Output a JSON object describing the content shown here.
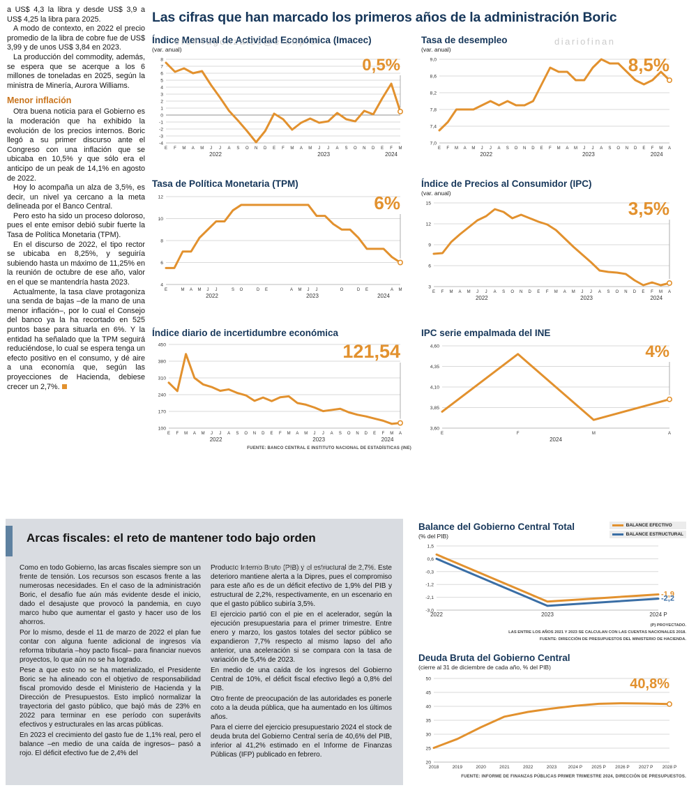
{
  "page": {
    "main_title": "Las cifras que han marcado los primeros años de la administración Boric",
    "watermarks": [
      "ero#4agonzalez@e-clip.cl",
      "diariofinan",
      "ero#4agonzalez@e-clip.cl"
    ]
  },
  "left_article": {
    "paragraphs": [
      "a US$ 4,3 la libra y desde US$ 3,9 a US$ 4,25 la libra para 2025.",
      "A modo de contexto, en 2022 el precio promedio de la libra de cobre fue de US$ 3,99 y de unos US$ 3,84 en 2023.",
      "La producción del commodity, además, se espera que se acerque a los 6 millones de toneladas en 2025, según la ministra de Minería, Aurora Williams."
    ],
    "heading": "Menor inflación",
    "paragraphs2": [
      "Otra buena noticia para el Gobierno es la moderación que ha exhibido la evolución de los precios internos. Boric llegó a su primer discurso ante el Congreso con una inflación que se ubicaba en 10,5% y que sólo era el anticipo de un peak de 14,1% en agosto de 2022.",
      "Hoy lo acompaña un alza de 3,5%, es decir, un nivel ya cercano a la meta delineada por el Banco Central.",
      "Pero esto ha sido un proceso doloroso, pues el ente emisor debió subir fuerte la Tasa de Política Monetaria (TPM).",
      "En el discurso de 2022, el tipo rector se ubicaba en 8,25%, y seguiría subiendo hasta un máximo de 11,25% en la reunión de octubre de ese año, valor en el que se mantendría hasta 2023.",
      "Actualmente, la tasa clave protagoniza una senda de bajas –de la mano de una menor inflación–, por lo cual el Consejo del banco ya la ha recortado en 525 puntos base para situarla en 6%. Y la entidad ha señalado que la TPM seguirá reduciéndose, lo cual se espera tenga un efecto positivo en el consumo, y dé aire a una economía que, según las proyecciones de Hacienda, debiese crecer un 2,7%."
    ]
  },
  "fiscal_panel": {
    "headline": "Arcas fiscales: el reto de mantener todo bajo orden",
    "col1": [
      "Como en todo Gobierno, las arcas fiscales siempre son un frente de tensión. Los recursos son escasos frente a las numerosas necesidades. En el caso de la administración Boric, el desafío fue aún más evidente desde el inicio, dado el desajuste que provocó la pandemia, en cuyo marco hubo que aumentar el gasto y hacer uso de los ahorros.",
      "Por lo mismo, desde el 11 de marzo de 2022 el plan fue contar con alguna fuente adicional de ingresos vía reforma tributaria –hoy pacto fiscal– para financiar nuevos proyectos, lo que aún no se ha logrado.",
      "Pese a que esto no se ha materializado, el Presidente Boric se ha alineado con el objetivo de responsabilidad fiscal promovido desde el Ministerio de Hacienda y la Dirección de Presupuestos. Esto implicó normalizar la trayectoria del gasto público, que bajó más de 23% en 2022 para terminar en ese período con superávits efectivos y estructurales en las arcas públicas.",
      "En 2023 el crecimiento del gasto fue de 1,1% real, pero el balance –en medio de una caída de ingresos– pasó a rojo. El déficit efectivo fue de 2,4% del"
    ],
    "col2": [
      "Producto Interno Bruto (PIB) y el estructural de 2,7%. Este deterioro mantiene alerta a la Dipres, pues el compromiso para este año es de un déficit efectivo de 1,9% del PIB y estructural de 2,2%, respectivamente, en un escenario en que el gasto público subiría 3,5%.",
      "El ejercicio partió con el pie en el acelerador, según la ejecución presupuestaria para el primer trimestre. Entre enero y marzo, los gastos totales del sector público se expandieron 7,7% respecto al mismo lapso del año anterior, una aceleración si se compara con la tasa de variación de 5,4% de 2023.",
      "En medio de una caída de los ingresos del Gobierno Central de 10%, el déficit fiscal efectivo llegó a 0,8% del PIB.",
      "Otro frente de preocupación de las autoridades es ponerle coto a la deuda pública, que ha aumentado en los últimos años.",
      "Para el cierre del ejercicio presupuestario 2024 el stock de deuda bruta del Gobierno Central sería de 40,6% del PIB, inferior al 41,2% estimado en el Informe de Finanzas Públicas (IFP) publicado en febrero."
    ]
  },
  "chart_data": [
    {
      "type": "line",
      "title": "Índice Mensual de Actividad Económica (Imacec)",
      "subtitle": "(var. anual)",
      "ylim": [
        -4,
        8
      ],
      "yticks": [
        "-4",
        "-3",
        "-2",
        "-1",
        "0",
        "1",
        "2",
        "3",
        "4",
        "5",
        "6",
        "7",
        "8"
      ],
      "x_labels": [
        "E",
        "F",
        "M",
        "A",
        "M",
        "J",
        "J",
        "A",
        "S",
        "O",
        "N",
        "D",
        "E",
        "F",
        "M",
        "A",
        "M",
        "J",
        "J",
        "A",
        "S",
        "O",
        "N",
        "D",
        "E",
        "F",
        "M"
      ],
      "years": [
        {
          "label": "2022",
          "from": 0,
          "to": 11
        },
        {
          "label": "2023",
          "from": 12,
          "to": 23
        },
        {
          "label": "2024",
          "from": 24,
          "to": 26
        }
      ],
      "series": [
        {
          "name": "Imacec",
          "color": "#E2912E",
          "values": [
            7.5,
            6.2,
            6.7,
            6.0,
            6.3,
            4.3,
            2.5,
            0.6,
            -0.8,
            -2.3,
            -3.9,
            -2.3,
            0.2,
            -0.6,
            -2.1,
            -1.1,
            -0.5,
            -1.1,
            -0.9,
            0.3,
            -0.6,
            -0.9,
            0.6,
            0.1,
            2.4,
            4.5,
            0.5
          ]
        }
      ],
      "end_label": "0,5%",
      "end_marker": true,
      "end_line": true
    },
    {
      "type": "line",
      "title": "Tasa de desempleo",
      "subtitle": "(var. anual)",
      "ylim": [
        7.0,
        9.0
      ],
      "yticks": [
        "7,0",
        "7,4",
        "7,8",
        "8,2",
        "8,6",
        "9,0"
      ],
      "x_labels": [
        "E",
        "F",
        "M",
        "A",
        "M",
        "J",
        "J",
        "A",
        "S",
        "O",
        "N",
        "D",
        "E",
        "F",
        "M",
        "A",
        "M",
        "J",
        "J",
        "A",
        "S",
        "O",
        "N",
        "D",
        "E",
        "F",
        "M",
        "A"
      ],
      "years": [
        {
          "label": "2022",
          "from": 0,
          "to": 11
        },
        {
          "label": "2023",
          "from": 12,
          "to": 23
        },
        {
          "label": "2024",
          "from": 24,
          "to": 27
        }
      ],
      "series": [
        {
          "name": "Desempleo",
          "color": "#E2912E",
          "values": [
            7.3,
            7.5,
            7.8,
            7.8,
            7.8,
            7.9,
            8.0,
            7.9,
            8.0,
            7.9,
            7.9,
            8.0,
            8.4,
            8.8,
            8.7,
            8.7,
            8.5,
            8.5,
            8.8,
            9.0,
            8.9,
            8.9,
            8.7,
            8.5,
            8.4,
            8.5,
            8.7,
            8.5
          ]
        }
      ],
      "end_label": "8,5%",
      "end_marker": true,
      "end_line": true
    },
    {
      "type": "line",
      "title": "Tasa de Política Monetaria (TPM)",
      "ylim": [
        4,
        12
      ],
      "yticks": [
        "4",
        "6",
        "8",
        "10",
        "12"
      ],
      "x_labels": [
        "E",
        "",
        "M",
        "A",
        "M",
        "J",
        "J",
        "",
        "S",
        "O",
        "",
        "D",
        "E",
        "",
        "",
        "A",
        "M",
        "J",
        "J",
        "",
        "",
        "O",
        "",
        "D",
        "E",
        "",
        "",
        "A",
        "M"
      ],
      "years": [
        {
          "label": "2022",
          "from": 0,
          "to": 11
        },
        {
          "label": "2023",
          "from": 12,
          "to": 23
        },
        {
          "label": "2024",
          "from": 24,
          "to": 28
        }
      ],
      "series": [
        {
          "name": "TPM",
          "color": "#E2912E",
          "values": [
            5.5,
            5.5,
            7.0,
            7.0,
            8.25,
            9.0,
            9.75,
            9.75,
            10.75,
            11.25,
            11.25,
            11.25,
            11.25,
            11.25,
            11.25,
            11.25,
            11.25,
            11.25,
            10.25,
            10.25,
            9.5,
            9.0,
            9.0,
            8.25,
            7.25,
            7.25,
            7.25,
            6.5,
            6.0
          ]
        }
      ],
      "end_label": "6%",
      "end_marker": true,
      "end_line": true
    },
    {
      "type": "line",
      "title": "Índice de Precios al Consumidor (IPC)",
      "subtitle": "(var. anual)",
      "ylim": [
        3,
        15
      ],
      "yticks": [
        "3",
        "6",
        "9",
        "12",
        "15"
      ],
      "x_labels": [
        "E",
        "F",
        "M",
        "A",
        "M",
        "J",
        "J",
        "A",
        "S",
        "O",
        "N",
        "D",
        "E",
        "F",
        "M",
        "A",
        "M",
        "J",
        "J",
        "A",
        "S",
        "O",
        "N",
        "D",
        "E",
        "F",
        "M",
        "A"
      ],
      "years": [
        {
          "label": "2022",
          "from": 0,
          "to": 11
        },
        {
          "label": "2023",
          "from": 12,
          "to": 23
        },
        {
          "label": "2024",
          "from": 24,
          "to": 27
        }
      ],
      "series": [
        {
          "name": "IPC",
          "color": "#E2912E",
          "values": [
            7.7,
            7.8,
            9.4,
            10.5,
            11.5,
            12.5,
            13.1,
            14.1,
            13.7,
            12.8,
            13.3,
            12.8,
            12.3,
            11.9,
            11.1,
            9.9,
            8.7,
            7.6,
            6.5,
            5.3,
            5.1,
            5.0,
            4.8,
            3.9,
            3.2,
            3.6,
            3.2,
            3.5
          ]
        }
      ],
      "end_label": "3,5%",
      "end_marker": true,
      "end_line": true
    },
    {
      "type": "line",
      "title": "Índice diario de incertidumbre económica",
      "ylim": [
        100,
        450
      ],
      "yticks": [
        "100",
        "170",
        "240",
        "310",
        "380",
        "450"
      ],
      "x_labels": [
        "E",
        "F",
        "M",
        "A",
        "M",
        "J",
        "J",
        "A",
        "S",
        "O",
        "N",
        "D",
        "E",
        "F",
        "M",
        "A",
        "M",
        "J",
        "J",
        "A",
        "S",
        "O",
        "N",
        "D",
        "E",
        "F",
        "M",
        "A"
      ],
      "years": [
        {
          "label": "2022",
          "from": 0,
          "to": 11
        },
        {
          "label": "2023",
          "from": 12,
          "to": 23
        },
        {
          "label": "2024",
          "from": 24,
          "to": 27
        }
      ],
      "series": [
        {
          "name": "Incertidumbre",
          "color": "#E2912E",
          "values": [
            290,
            255,
            410,
            310,
            283,
            272,
            256,
            262,
            247,
            237,
            214,
            228,
            213,
            229,
            233,
            205,
            198,
            186,
            171,
            176,
            181,
            166,
            156,
            149,
            140,
            131,
            118,
            121.54
          ]
        }
      ],
      "end_label": "121,54",
      "end_marker": true,
      "end_line": true,
      "source": "FUENTE: BANCO CENTRAL E INSTITUTO NACIONAL DE ESTADÍSTICAS (INE)"
    },
    {
      "type": "line",
      "title": "IPC serie empalmada del INE",
      "ylim": [
        3.6,
        4.6
      ],
      "yticks": [
        "3,60",
        "3,85",
        "4,10",
        "4,35",
        "4,60"
      ],
      "x_labels": [
        "E",
        "F",
        "M",
        "A"
      ],
      "years": [
        {
          "label": "2024",
          "from": 0,
          "to": 3
        }
      ],
      "series": [
        {
          "name": "IPC empalmada",
          "color": "#E2912E",
          "values": [
            3.8,
            4.5,
            3.7,
            3.95
          ]
        }
      ],
      "end_label": "4%",
      "end_marker": true,
      "end_line": true
    },
    {
      "type": "line",
      "title": "Balance del Gobierno Central Total",
      "subtitle": "(% del PIB)",
      "ylim": [
        -3.0,
        1.5
      ],
      "yticks": [
        "1,5",
        "0,6",
        "-0,3",
        "-1,2",
        "-2,1",
        "-3,0"
      ],
      "x_labels": [
        "2022",
        "2023",
        "2024 P"
      ],
      "series": [
        {
          "name": "BALANCE EFECTIVO",
          "color": "#E2912E",
          "values": [
            0.9,
            -2.4,
            -1.9
          ]
        },
        {
          "name": "BALANCE ESTRUCTURAL",
          "color": "#3A6EA5",
          "values": [
            0.6,
            -2.7,
            -2.2
          ]
        }
      ],
      "series_end_labels": [
        "-1,9",
        "-2,2"
      ],
      "legend": [
        "BALANCE EFECTIVO",
        "BALANCE ESTRUCTURAL"
      ],
      "notes": [
        "(P) PROYECTADO.",
        "LAS ENTRE LOS AÑOS 2021 Y 2023 SE CALCULAN  CON LAS CUENTAS NACIONALES 2018.",
        "FUENTE: DIRECCIÓN DE PRESUPUESTOS DEL MINISTERIO DE HACIENDA."
      ]
    },
    {
      "type": "line",
      "title": "Deuda Bruta del Gobierno Central",
      "subtitle": "(cierre al 31 de diciembre de cada año, % del PIB)",
      "ylim": [
        20,
        50
      ],
      "yticks": [
        "20",
        "25",
        "30",
        "35",
        "40",
        "45",
        "50"
      ],
      "x_labels": [
        "2018",
        "2019",
        "2020",
        "2021",
        "2022",
        "2023",
        "2024 P",
        "2025 P",
        "2026 P",
        "2027 P",
        "2028 P"
      ],
      "series": [
        {
          "name": "Deuda bruta",
          "color": "#E2912E",
          "values": [
            25.1,
            28.3,
            32.5,
            36.3,
            38.0,
            39.2,
            40.2,
            40.9,
            41.1,
            41.0,
            40.8
          ]
        }
      ],
      "end_label": "40,8%",
      "end_marker": true,
      "end_line": false,
      "source": "FUENTE: INFORME DE FINANZAS PÚBLICAS PRIMER TRIMESTRE 2024, DIRECCIÓN DE PRESUPUESTOS."
    }
  ]
}
